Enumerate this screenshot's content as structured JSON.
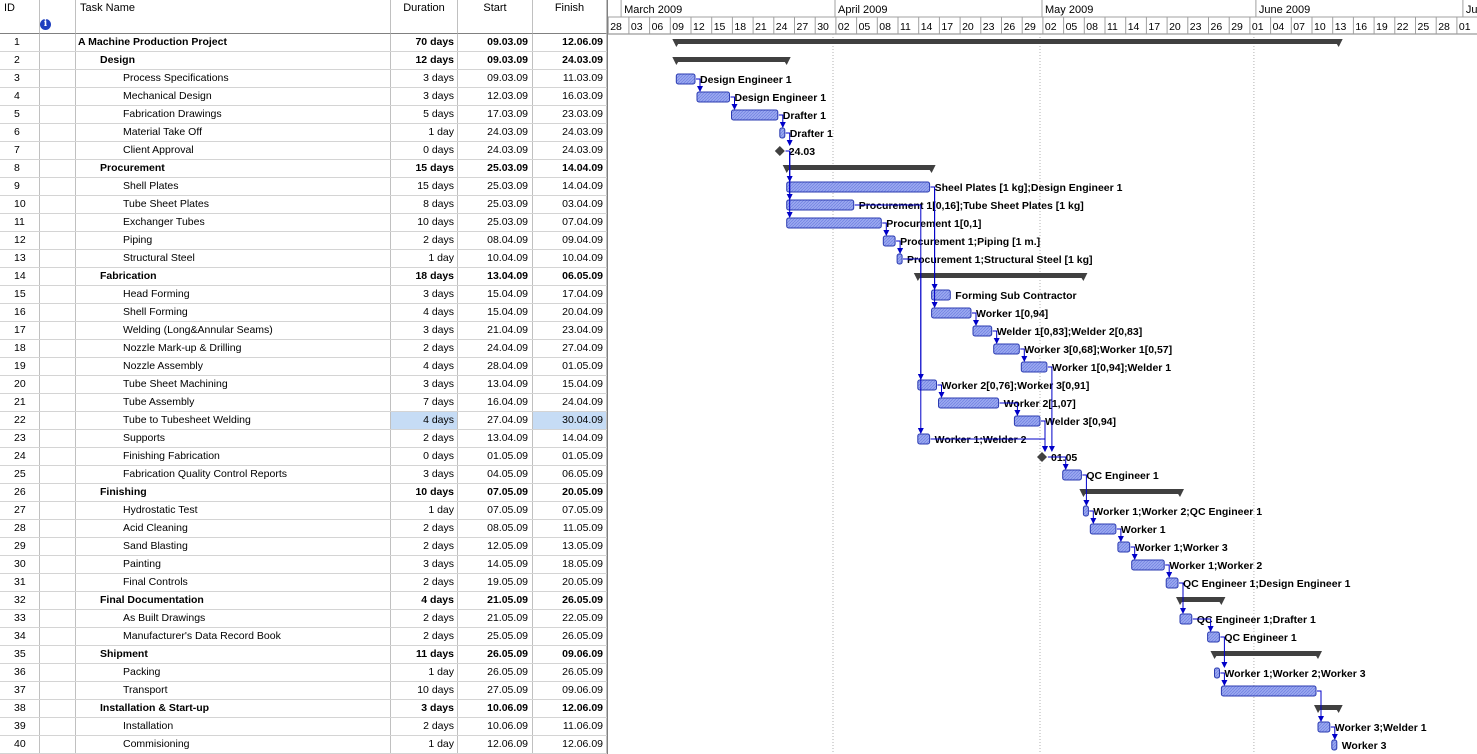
{
  "columns": {
    "id": "ID",
    "name": "Task Name",
    "duration": "Duration",
    "start": "Start",
    "finish": "Finish"
  },
  "icons": {
    "info": "info-icon"
  },
  "timescale": {
    "months": [
      "March 2009",
      "April 2009",
      "May 2009",
      "June 2009",
      "July"
    ],
    "days": [
      "28",
      "03",
      "06",
      "09",
      "12",
      "15",
      "18",
      "21",
      "24",
      "27",
      "30",
      "02",
      "05",
      "08",
      "11",
      "14",
      "17",
      "20",
      "23",
      "26",
      "29",
      "02",
      "05",
      "08",
      "11",
      "14",
      "17",
      "20",
      "23",
      "26",
      "29",
      "01",
      "04",
      "07",
      "10",
      "13",
      "16",
      "19",
      "22",
      "25",
      "28",
      "01"
    ]
  },
  "colors": {
    "bar_fill": "#9aa8f0",
    "bar_stroke": "#2b3bb0",
    "summary": "#404040",
    "link": "#0000c8",
    "selected": "#c6dcf5"
  },
  "tasks": [
    {
      "id": "1",
      "name": "A Machine Production Project",
      "duration": "70 days",
      "start": "09.03.09",
      "finish": "12.06.09",
      "level": 0,
      "summary": true,
      "label": ""
    },
    {
      "id": "2",
      "name": "Design",
      "duration": "12 days",
      "start": "09.03.09",
      "finish": "24.03.09",
      "level": 1,
      "summary": true,
      "label": ""
    },
    {
      "id": "3",
      "name": "Process Specifications",
      "duration": "3 days",
      "start": "09.03.09",
      "finish": "11.03.09",
      "level": 2,
      "label": "Design Engineer 1"
    },
    {
      "id": "4",
      "name": "Mechanical Design",
      "duration": "3 days",
      "start": "12.03.09",
      "finish": "16.03.09",
      "level": 2,
      "label": "Design Engineer 1"
    },
    {
      "id": "5",
      "name": "Fabrication Drawings",
      "duration": "5 days",
      "start": "17.03.09",
      "finish": "23.03.09",
      "level": 2,
      "label": "Drafter 1"
    },
    {
      "id": "6",
      "name": "Material Take Off",
      "duration": "1 day",
      "start": "24.03.09",
      "finish": "24.03.09",
      "level": 2,
      "label": "Drafter 1"
    },
    {
      "id": "7",
      "name": "Client Approval",
      "duration": "0 days",
      "start": "24.03.09",
      "finish": "24.03.09",
      "level": 2,
      "milestone": true,
      "label": "24.03"
    },
    {
      "id": "8",
      "name": "Procurement",
      "duration": "15 days",
      "start": "25.03.09",
      "finish": "14.04.09",
      "level": 1,
      "summary": true,
      "label": ""
    },
    {
      "id": "9",
      "name": "Shell Plates",
      "duration": "15 days",
      "start": "25.03.09",
      "finish": "14.04.09",
      "level": 2,
      "label": "Sheel Plates [1 kg];Design Engineer 1"
    },
    {
      "id": "10",
      "name": "Tube Sheet Plates",
      "duration": "8 days",
      "start": "25.03.09",
      "finish": "03.04.09",
      "level": 2,
      "label": "Procurement 1[0,16];Tube Sheet Plates [1 kg]"
    },
    {
      "id": "11",
      "name": "Exchanger Tubes",
      "duration": "10 days",
      "start": "25.03.09",
      "finish": "07.04.09",
      "level": 2,
      "label": "Procurement 1[0,1]"
    },
    {
      "id": "12",
      "name": "Piping",
      "duration": "2 days",
      "start": "08.04.09",
      "finish": "09.04.09",
      "level": 2,
      "label": "Procurement 1;Piping [1 m.]"
    },
    {
      "id": "13",
      "name": "Structural Steel",
      "duration": "1 day",
      "start": "10.04.09",
      "finish": "10.04.09",
      "level": 2,
      "label": "Procurement 1;Structural Steel [1 kg]"
    },
    {
      "id": "14",
      "name": "Fabrication",
      "duration": "18 days",
      "start": "13.04.09",
      "finish": "06.05.09",
      "level": 1,
      "summary": true,
      "label": ""
    },
    {
      "id": "15",
      "name": "Head Forming",
      "duration": "3 days",
      "start": "15.04.09",
      "finish": "17.04.09",
      "level": 2,
      "label": "Forming Sub Contractor"
    },
    {
      "id": "16",
      "name": "Shell Forming",
      "duration": "4 days",
      "start": "15.04.09",
      "finish": "20.04.09",
      "level": 2,
      "label": "Worker 1[0,94]"
    },
    {
      "id": "17",
      "name": "Welding (Long&Annular Seams)",
      "duration": "3 days",
      "start": "21.04.09",
      "finish": "23.04.09",
      "level": 2,
      "label": "Welder 1[0,83];Welder 2[0,83]"
    },
    {
      "id": "18",
      "name": "Nozzle Mark-up & Drilling",
      "duration": "2 days",
      "start": "24.04.09",
      "finish": "27.04.09",
      "level": 2,
      "label": "Worker 3[0,68];Worker 1[0,57]"
    },
    {
      "id": "19",
      "name": "Nozzle Assembly",
      "duration": "4 days",
      "start": "28.04.09",
      "finish": "01.05.09",
      "level": 2,
      "label": "Worker 1[0,94];Welder 1"
    },
    {
      "id": "20",
      "name": "Tube Sheet Machining",
      "duration": "3 days",
      "start": "13.04.09",
      "finish": "15.04.09",
      "level": 2,
      "label": "Worker 2[0,76];Worker 3[0,91]"
    },
    {
      "id": "21",
      "name": "Tube Assembly",
      "duration": "7 days",
      "start": "16.04.09",
      "finish": "24.04.09",
      "level": 2,
      "label": "Worker 2[1,07]"
    },
    {
      "id": "22",
      "name": "Tube to Tubesheet Welding",
      "duration": "4 days",
      "start": "27.04.09",
      "finish": "30.04.09",
      "level": 2,
      "selected": true,
      "label": "Welder 3[0,94]"
    },
    {
      "id": "23",
      "name": "Supports",
      "duration": "2 days",
      "start": "13.04.09",
      "finish": "14.04.09",
      "level": 2,
      "label": "Worker 1;Welder 2"
    },
    {
      "id": "24",
      "name": "Finishing Fabrication",
      "duration": "0 days",
      "start": "01.05.09",
      "finish": "01.05.09",
      "level": 2,
      "milestone": true,
      "label": "01.05"
    },
    {
      "id": "25",
      "name": "Fabrication Quality Control Reports",
      "duration": "3 days",
      "start": "04.05.09",
      "finish": "06.05.09",
      "level": 2,
      "label": "QC Engineer 1"
    },
    {
      "id": "26",
      "name": "Finishing",
      "duration": "10 days",
      "start": "07.05.09",
      "finish": "20.05.09",
      "level": 1,
      "summary": true,
      "label": ""
    },
    {
      "id": "27",
      "name": "Hydrostatic Test",
      "duration": "1 day",
      "start": "07.05.09",
      "finish": "07.05.09",
      "level": 2,
      "label": "Worker 1;Worker 2;QC Engineer 1"
    },
    {
      "id": "28",
      "name": "Acid Cleaning",
      "duration": "2 days",
      "start": "08.05.09",
      "finish": "11.05.09",
      "level": 2,
      "label": "Worker 1"
    },
    {
      "id": "29",
      "name": "Sand Blasting",
      "duration": "2 days",
      "start": "12.05.09",
      "finish": "13.05.09",
      "level": 2,
      "label": "Worker 1;Worker 3"
    },
    {
      "id": "30",
      "name": "Painting",
      "duration": "3 days",
      "start": "14.05.09",
      "finish": "18.05.09",
      "level": 2,
      "label": "Worker 1;Worker 2"
    },
    {
      "id": "31",
      "name": "Final Controls",
      "duration": "2 days",
      "start": "19.05.09",
      "finish": "20.05.09",
      "level": 2,
      "label": "QC Engineer 1;Design Engineer 1"
    },
    {
      "id": "32",
      "name": "Final Documentation",
      "duration": "4 days",
      "start": "21.05.09",
      "finish": "26.05.09",
      "level": 1,
      "summary": true,
      "label": ""
    },
    {
      "id": "33",
      "name": "As Built Drawings",
      "duration": "2 days",
      "start": "21.05.09",
      "finish": "22.05.09",
      "level": 2,
      "label": "QC Engineer 1;Drafter 1"
    },
    {
      "id": "34",
      "name": "Manufacturer's Data Record Book",
      "duration": "2 days",
      "start": "25.05.09",
      "finish": "26.05.09",
      "level": 2,
      "label": "QC Engineer 1"
    },
    {
      "id": "35",
      "name": "Shipment",
      "duration": "11 days",
      "start": "26.05.09",
      "finish": "09.06.09",
      "level": 1,
      "summary": true,
      "label": ""
    },
    {
      "id": "36",
      "name": "Packing",
      "duration": "1 day",
      "start": "26.05.09",
      "finish": "26.05.09",
      "level": 2,
      "label": "Worker 1;Worker 2;Worker 3"
    },
    {
      "id": "37",
      "name": "Transport",
      "duration": "10 days",
      "start": "27.05.09",
      "finish": "09.06.09",
      "level": 2,
      "label": ""
    },
    {
      "id": "38",
      "name": "Installation & Start-up",
      "duration": "3 days",
      "start": "10.06.09",
      "finish": "12.06.09",
      "level": 1,
      "summary": true,
      "label": ""
    },
    {
      "id": "39",
      "name": "Installation",
      "duration": "2 days",
      "start": "10.06.09",
      "finish": "11.06.09",
      "level": 2,
      "label": "Worker 3;Welder 1"
    },
    {
      "id": "40",
      "name": "Commisioning",
      "duration": "1 day",
      "start": "12.06.09",
      "finish": "12.06.09",
      "level": 2,
      "label": "Worker 3"
    }
  ]
}
